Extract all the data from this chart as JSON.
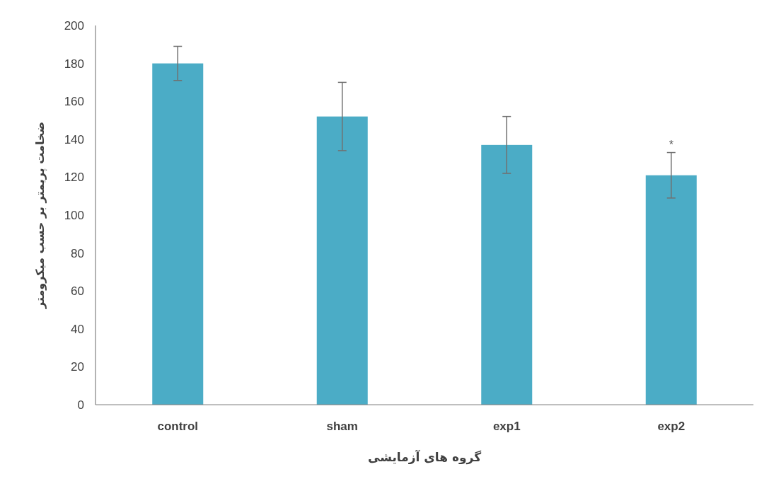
{
  "chart_data": {
    "type": "bar",
    "xlabel": "گروه های آزمایشی",
    "ylabel": "ضخامت پریمتر بر حسب میکرومتر",
    "categories": [
      "control",
      "sham",
      "exp1",
      "exp2"
    ],
    "values": [
      180,
      152,
      137,
      121
    ],
    "errors": [
      9,
      18,
      15,
      12
    ],
    "color": "#4bacc6",
    "ylim": [
      0,
      200
    ],
    "yticks": [
      0,
      20,
      40,
      60,
      80,
      100,
      120,
      140,
      160,
      180,
      200
    ],
    "annotations": [
      {
        "text": "*",
        "x": "exp2",
        "y": 133
      }
    ]
  }
}
